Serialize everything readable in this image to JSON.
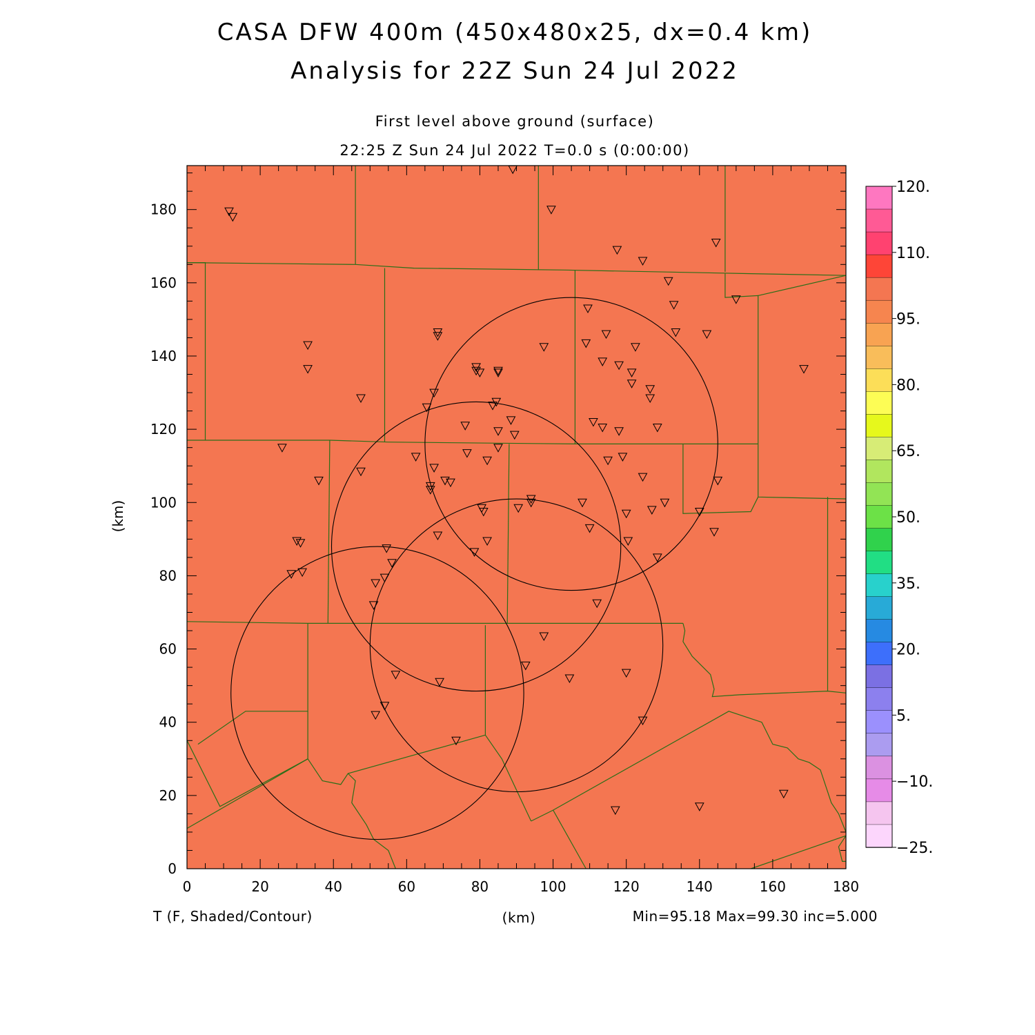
{
  "header": {
    "title_line1": "CASA DFW 400m (450x480x25, dx=0.4 km)",
    "title_line2": "Analysis for 22Z Sun 24 Jul 2022",
    "level": "First level above ground (surface)",
    "time": "22:25 Z Sun 24 Jul 2022    T=0.0 s (0:00:00)"
  },
  "footer": {
    "variable": "T (F, Shaded/Contour)",
    "xunit": "(km)",
    "stats": "Min=95.18 Max=99.30 inc=5.000"
  },
  "colors": {
    "field": "#f47651",
    "county_lines": "#2a6e18",
    "frame": "#000000"
  },
  "chart_data": {
    "type": "heatmap",
    "title": "CASA DFW 400m (450x480x25, dx=0.4 km)",
    "subtitle": "Analysis for 22Z Sun 24 Jul 2022",
    "xlabel": "(km)",
    "ylabel": "(km)",
    "xlim": [
      0,
      180
    ],
    "ylim": [
      0,
      192
    ],
    "x_ticks": [
      0,
      20,
      40,
      60,
      80,
      100,
      120,
      140,
      160,
      180
    ],
    "y_ticks": [
      0,
      20,
      40,
      60,
      80,
      100,
      120,
      140,
      160,
      180
    ],
    "field_variable": "T (F, Shaded/Contour)",
    "field_min": 95.18,
    "field_max": 99.3,
    "contour_increment": 5.0,
    "colorbar": {
      "labels": [
        "120.",
        "110.",
        "95.",
        "80.",
        "65.",
        "50.",
        "35.",
        "20.",
        "5.",
        "−10.",
        "−25."
      ],
      "colors": [
        "#fe77c0",
        "#ff5a95",
        "#ff4270",
        "#fe4537",
        "#f47651",
        "#f6854f",
        "#f8a352",
        "#f9bd5a",
        "#fcde58",
        "#fdfd55",
        "#e6f81c",
        "#d7ec76",
        "#b1e65e",
        "#92e455",
        "#6ce147",
        "#30d24c",
        "#21de84",
        "#28d1cc",
        "#28aad7",
        "#268ae2",
        "#3d6ffb",
        "#7b70e3",
        "#8c80ee",
        "#9b90fd",
        "#ab9cf0",
        "#db91e1",
        "#e68be7",
        "#f5c5ef",
        "#fcd6fc"
      ]
    },
    "radar_rings": [
      {
        "center": [
          105,
          116
        ],
        "radius": 40
      },
      {
        "center": [
          79,
          88
        ],
        "radius": 39.5
      },
      {
        "center": [
          90,
          61
        ],
        "radius": 40
      },
      {
        "center": [
          52,
          48
        ],
        "radius": 40
      }
    ],
    "stations": [
      [
        11.5,
        179.5
      ],
      [
        12.5,
        178
      ],
      [
        89,
        191
      ],
      [
        99.5,
        180
      ],
      [
        117.5,
        169
      ],
      [
        124.5,
        166
      ],
      [
        144.5,
        171
      ],
      [
        131.5,
        160.5
      ],
      [
        133,
        154
      ],
      [
        150,
        155.5
      ],
      [
        109.5,
        153
      ],
      [
        133.5,
        146.5
      ],
      [
        142,
        146
      ],
      [
        114.5,
        146
      ],
      [
        68.5,
        146.5
      ],
      [
        68.5,
        145.5
      ],
      [
        33,
        143
      ],
      [
        97.5,
        142.5
      ],
      [
        109,
        143.5
      ],
      [
        122.5,
        142.5
      ],
      [
        168.5,
        136.5
      ],
      [
        33,
        136.5
      ],
      [
        79,
        137
      ],
      [
        79,
        136
      ],
      [
        80,
        135.5
      ],
      [
        85,
        136
      ],
      [
        85,
        135.5
      ],
      [
        113.5,
        138.5
      ],
      [
        118,
        137.5
      ],
      [
        121.5,
        135.5
      ],
      [
        121.5,
        132.5
      ],
      [
        126.5,
        131
      ],
      [
        126.5,
        128.5
      ],
      [
        67.5,
        130
      ],
      [
        65.5,
        126
      ],
      [
        47.5,
        128.5
      ],
      [
        84.5,
        127.5
      ],
      [
        83.5,
        126.5
      ],
      [
        88.5,
        122.5
      ],
      [
        76,
        121
      ],
      [
        85,
        119.5
      ],
      [
        89.5,
        118.5
      ],
      [
        111,
        122
      ],
      [
        113.5,
        120.5
      ],
      [
        118,
        119.5
      ],
      [
        128.5,
        120.5
      ],
      [
        26,
        115
      ],
      [
        85,
        115
      ],
      [
        62.5,
        112.5
      ],
      [
        76.5,
        113.5
      ],
      [
        82,
        111.5
      ],
      [
        115,
        111.5
      ],
      [
        119,
        112.5
      ],
      [
        67.5,
        109.5
      ],
      [
        47.5,
        108.5
      ],
      [
        124.5,
        107
      ],
      [
        36,
        106
      ],
      [
        70.5,
        106
      ],
      [
        72,
        105.5
      ],
      [
        66.5,
        104.5
      ],
      [
        66.5,
        103.5
      ],
      [
        145,
        106
      ],
      [
        94,
        101
      ],
      [
        94,
        100
      ],
      [
        108,
        100
      ],
      [
        130.5,
        100
      ],
      [
        90.5,
        98.5
      ],
      [
        80.5,
        98.5
      ],
      [
        81,
        97.5
      ],
      [
        120,
        97
      ],
      [
        127,
        98
      ],
      [
        140,
        97.5
      ],
      [
        30,
        89.5
      ],
      [
        31,
        89
      ],
      [
        68.5,
        91
      ],
      [
        82,
        89.5
      ],
      [
        110,
        93
      ],
      [
        120.5,
        89.5
      ],
      [
        144,
        92
      ],
      [
        78.5,
        86.5
      ],
      [
        54.5,
        87.5
      ],
      [
        128.5,
        85
      ],
      [
        56,
        83.5
      ],
      [
        28.5,
        80.5
      ],
      [
        31.5,
        81
      ],
      [
        54,
        79.5
      ],
      [
        51.5,
        78
      ],
      [
        51,
        72
      ],
      [
        112,
        72.5
      ],
      [
        97.5,
        63.5
      ],
      [
        92.5,
        55.5
      ],
      [
        57,
        53
      ],
      [
        69,
        51
      ],
      [
        104.5,
        52
      ],
      [
        120,
        53.5
      ],
      [
        54,
        44.5
      ],
      [
        51.5,
        42
      ],
      [
        124.5,
        40.5
      ],
      [
        73.5,
        35
      ],
      [
        117,
        16
      ],
      [
        163,
        20.5
      ],
      [
        140,
        17
      ]
    ],
    "county_lines": [
      [
        [
          0,
          165.5
        ],
        [
          46,
          165
        ],
        [
          62,
          164
        ],
        [
          103,
          163.5
        ],
        [
          154,
          162.5
        ],
        [
          180,
          162
        ]
      ],
      [
        [
          46,
          192
        ],
        [
          46,
          165
        ]
      ],
      [
        [
          96,
          192
        ],
        [
          96,
          163.5
        ]
      ],
      [
        [
          147,
          192
        ],
        [
          147,
          163
        ]
      ],
      [
        [
          0,
          165.5
        ],
        [
          5,
          165.5
        ],
        [
          5,
          117
        ]
      ],
      [
        [
          0,
          117
        ],
        [
          39,
          117
        ],
        [
          55,
          116.5
        ],
        [
          106,
          116
        ],
        [
          135.5,
          116
        ],
        [
          156,
          116
        ]
      ],
      [
        [
          54,
          164
        ],
        [
          54,
          116.5
        ]
      ],
      [
        [
          106,
          163.5
        ],
        [
          106,
          116
        ]
      ],
      [
        [
          147,
          162.5
        ],
        [
          147,
          156
        ],
        [
          156,
          156.5
        ],
        [
          156,
          116
        ]
      ],
      [
        [
          156,
          156.5
        ],
        [
          180,
          162
        ]
      ],
      [
        [
          156,
          116
        ],
        [
          156,
          101.5
        ],
        [
          180,
          101
        ]
      ],
      [
        [
          39,
          117
        ],
        [
          38.5,
          67
        ]
      ],
      [
        [
          88,
          116
        ],
        [
          87.5,
          67
        ]
      ],
      [
        [
          135.5,
          116
        ],
        [
          135.5,
          97
        ],
        [
          154,
          97.5
        ],
        [
          156,
          101.5
        ]
      ],
      [
        [
          0,
          67.5
        ],
        [
          33,
          67
        ],
        [
          87.5,
          67
        ],
        [
          135.5,
          67
        ]
      ],
      [
        [
          33,
          67
        ],
        [
          33,
          43
        ],
        [
          16,
          43
        ],
        [
          3,
          34
        ]
      ],
      [
        [
          33,
          43
        ],
        [
          33,
          30
        ]
      ],
      [
        [
          81.5,
          66.5
        ],
        [
          81.5,
          36.5
        ]
      ],
      [
        [
          135.5,
          67
        ],
        [
          136,
          65
        ],
        [
          135.5,
          62
        ],
        [
          138,
          58
        ],
        [
          143,
          53
        ],
        [
          144,
          49
        ],
        [
          143.5,
          47
        ],
        [
          151,
          47.5
        ],
        [
          175,
          48.5
        ],
        [
          180,
          48
        ]
      ],
      [
        [
          175,
          101.5
        ],
        [
          175,
          48.5
        ]
      ],
      [
        [
          0,
          11
        ],
        [
          33,
          30
        ],
        [
          37,
          24
        ],
        [
          42,
          23
        ],
        [
          44,
          26
        ],
        [
          81.5,
          36.5
        ],
        [
          86,
          30
        ],
        [
          94,
          13
        ]
      ],
      [
        [
          0,
          35
        ],
        [
          9,
          17
        ],
        [
          33,
          30
        ]
      ],
      [
        [
          44,
          26
        ],
        [
          46,
          24
        ],
        [
          45,
          18
        ],
        [
          49,
          12
        ],
        [
          51,
          8
        ],
        [
          55,
          5
        ],
        [
          57,
          0
        ]
      ],
      [
        [
          94,
          13
        ],
        [
          100,
          16
        ],
        [
          148,
          43
        ],
        [
          157,
          40
        ],
        [
          160,
          34
        ],
        [
          164,
          33
        ],
        [
          167,
          30
        ],
        [
          170,
          29
        ],
        [
          173,
          27
        ],
        [
          174,
          24
        ],
        [
          175,
          21
        ],
        [
          176,
          18
        ],
        [
          178,
          15
        ],
        [
          180,
          10
        ]
      ],
      [
        [
          100,
          16
        ],
        [
          109,
          0
        ]
      ],
      [
        [
          154,
          0
        ],
        [
          180,
          9
        ]
      ],
      [
        [
          180,
          9
        ],
        [
          178,
          6
        ],
        [
          179,
          2
        ],
        [
          180,
          2
        ]
      ]
    ]
  }
}
